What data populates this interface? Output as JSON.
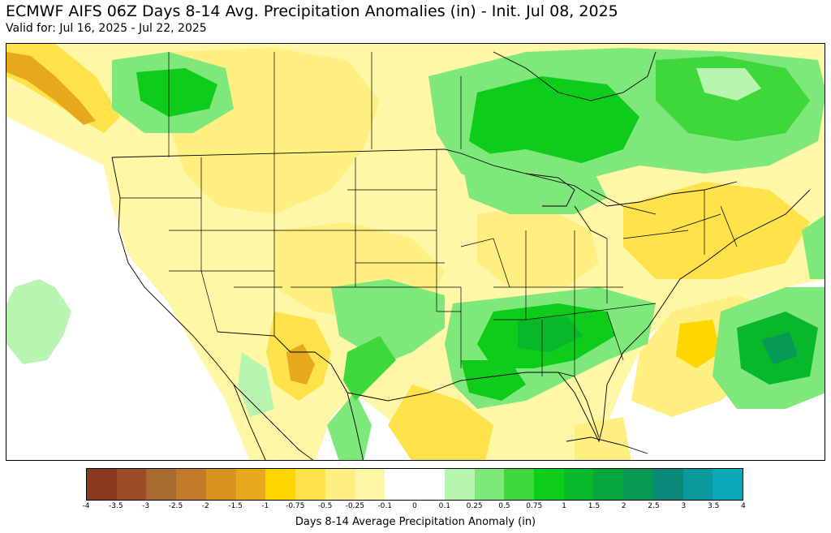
{
  "header": {
    "title": "ECMWF AIFS 06Z Days 8-14 Avg. Precipitation Anomalies (in) - Init. Jul 08, 2025",
    "subtitle": "Valid for: Jul 16, 2025 - Jul 22, 2025"
  },
  "colorbar": {
    "label": "Days 8-14 Average Precipitation Anomaly (in)",
    "ticks": [
      "-4",
      "-3.5",
      "-3",
      "-2.5",
      "-2",
      "-1.5",
      "-1",
      "-0.75",
      "-0.5",
      "-0.25",
      "-0.1",
      "0",
      "0.1",
      "0.25",
      "0.5",
      "0.75",
      "1",
      "1.5",
      "2",
      "2.5",
      "3",
      "3.5",
      "4"
    ],
    "colors": [
      "#8b3a1e",
      "#9b4e25",
      "#a86a2e",
      "#c27a28",
      "#d99320",
      "#e8a81b",
      "#ffd500",
      "#ffe14a",
      "#ffee80",
      "#fff6a6",
      "#ffffff",
      "#ffffff",
      "#b8f5b0",
      "#7ee87a",
      "#3ed83a",
      "#0ecc1a",
      "#07b82a",
      "#06a83e",
      "#069a56",
      "#0b8a7c",
      "#0a9a9e",
      "#0aa9b8"
    ]
  },
  "map": {
    "region": "Contiguous United States",
    "colors": {
      "yellow_light": "#fff6a6",
      "yellow": "#ffee80",
      "yellow_mid": "#ffe14a",
      "gold": "#ffd500",
      "orange": "#e8a81b",
      "green_light": "#b8f5b0",
      "green": "#7ee87a",
      "green_mid": "#3ed83a",
      "green_dark": "#0ecc1a",
      "green_deep": "#07b82a",
      "teal": "#069a56",
      "border": "#000000"
    }
  }
}
